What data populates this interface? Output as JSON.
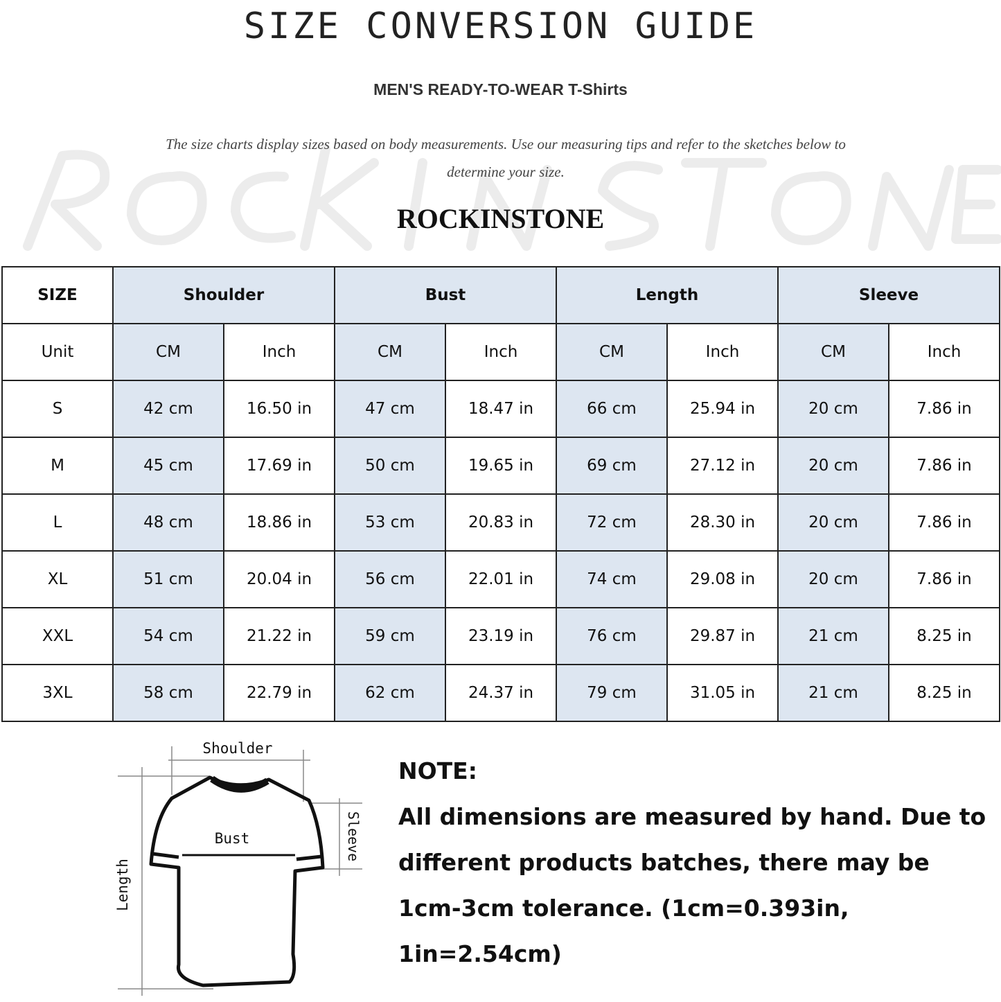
{
  "header": {
    "title": "SIZE CONVERSION GUIDE",
    "subtitle": "MEN'S READY-TO-WEAR T-Shirts",
    "description": "The size charts display sizes based on body measurements. Use our measuring tips and refer to the sketches below to determine your size.",
    "watermark": "ROCK IN STONE",
    "brand": "ROCKINSTONE"
  },
  "table": {
    "size_header": "SIZE",
    "groups": [
      "Shoulder",
      "Bust",
      "Length",
      "Sleeve"
    ],
    "unit_label": "Unit",
    "units": [
      "CM",
      "Inch",
      "CM",
      "Inch",
      "CM",
      "Inch",
      "CM",
      "Inch"
    ],
    "rows": [
      {
        "size": "S",
        "values": [
          "42 cm",
          "16.50 in",
          "47 cm",
          "18.47  in",
          "66 cm",
          "25.94  in",
          "20 cm",
          "7.86  in"
        ]
      },
      {
        "size": "M",
        "values": [
          "45 cm",
          "17.69  in",
          "50 cm",
          "19.65  in",
          "69 cm",
          "27.12  in",
          "20 cm",
          "7.86  in"
        ]
      },
      {
        "size": "L",
        "values": [
          "48 cm",
          "18.86  in",
          "53 cm",
          "20.83  in",
          "72 cm",
          "28.30  in",
          "20 cm",
          "7.86  in"
        ]
      },
      {
        "size": "XL",
        "values": [
          "51 cm",
          "20.04  in",
          "56 cm",
          "22.01  in",
          "74 cm",
          "29.08  in",
          "20 cm",
          "7.86  in"
        ]
      },
      {
        "size": "XXL",
        "values": [
          "54 cm",
          "21.22  in",
          "59 cm",
          "23.19  in",
          "76 cm",
          "29.87  in",
          "21 cm",
          "8.25  in"
        ]
      },
      {
        "size": "3XL",
        "values": [
          "58 cm",
          "22.79  in",
          "62 cm",
          "24.37  in",
          "79 cm",
          "31.05  in",
          "21 cm",
          "8.25  in"
        ]
      }
    ],
    "colors": {
      "shaded": "#dde6f1",
      "border": "#222222"
    }
  },
  "sketch": {
    "shoulder": "Shoulder",
    "bust": "Bust",
    "sleeve": "Sleeve",
    "length": "Length"
  },
  "note": {
    "heading": "NOTE:",
    "text": "All dimensions are measured by hand. Due to different products batches, there may be 1cm-3cm tolerance. (1cm=0.393in, 1in=2.54cm)"
  }
}
